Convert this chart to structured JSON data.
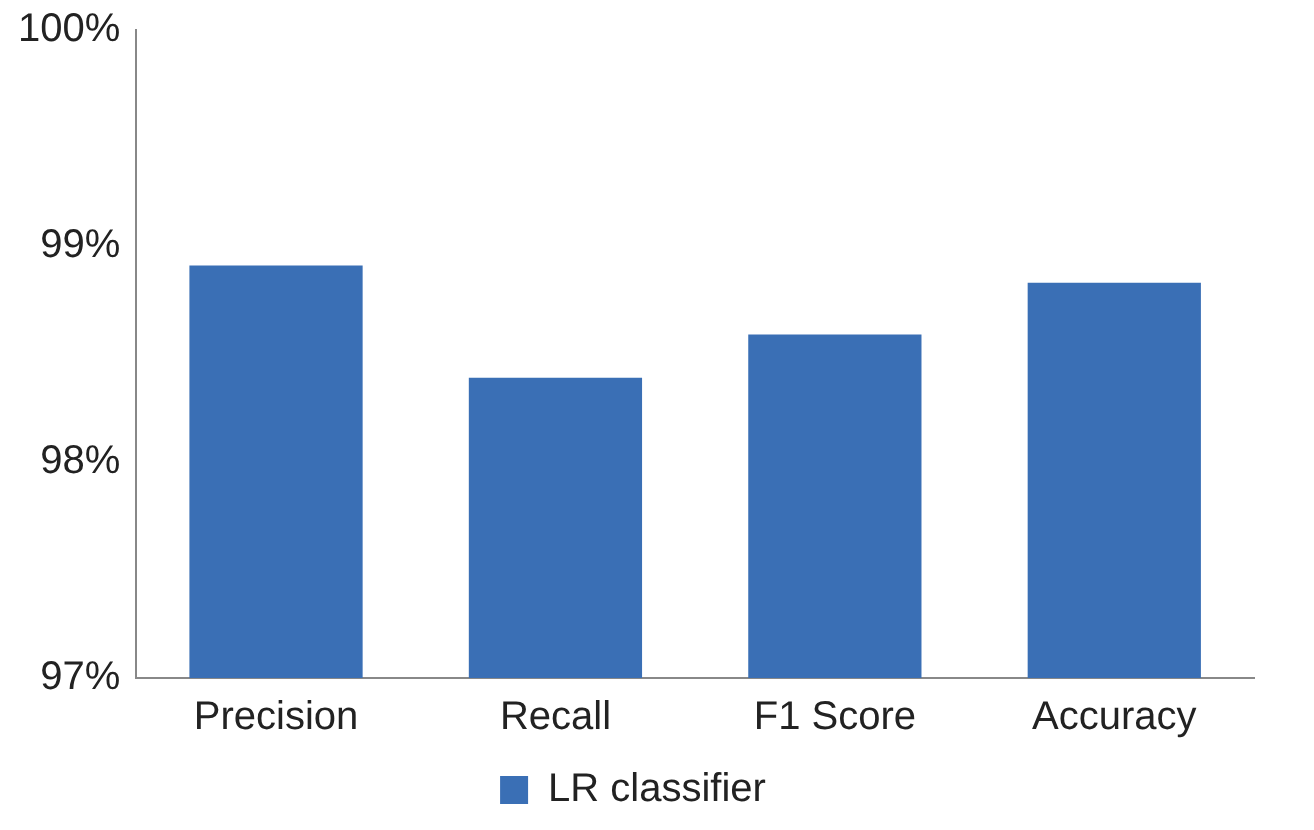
{
  "chart_data": {
    "type": "bar",
    "categories": [
      "Precision",
      "Recall",
      "F1 Score",
      "Accuracy"
    ],
    "series": [
      {
        "name": "LR classifier",
        "color": "#3a6fb5",
        "values": [
          98.91,
          98.39,
          98.59,
          98.83
        ]
      }
    ],
    "ylim": [
      97,
      100
    ],
    "yticks": [
      {
        "value": 97,
        "label": "97%"
      },
      {
        "value": 98,
        "label": "98%"
      },
      {
        "value": 99,
        "label": "99%"
      },
      {
        "value": 100,
        "label": "100%"
      }
    ],
    "grid": false,
    "legend": "bottom"
  }
}
